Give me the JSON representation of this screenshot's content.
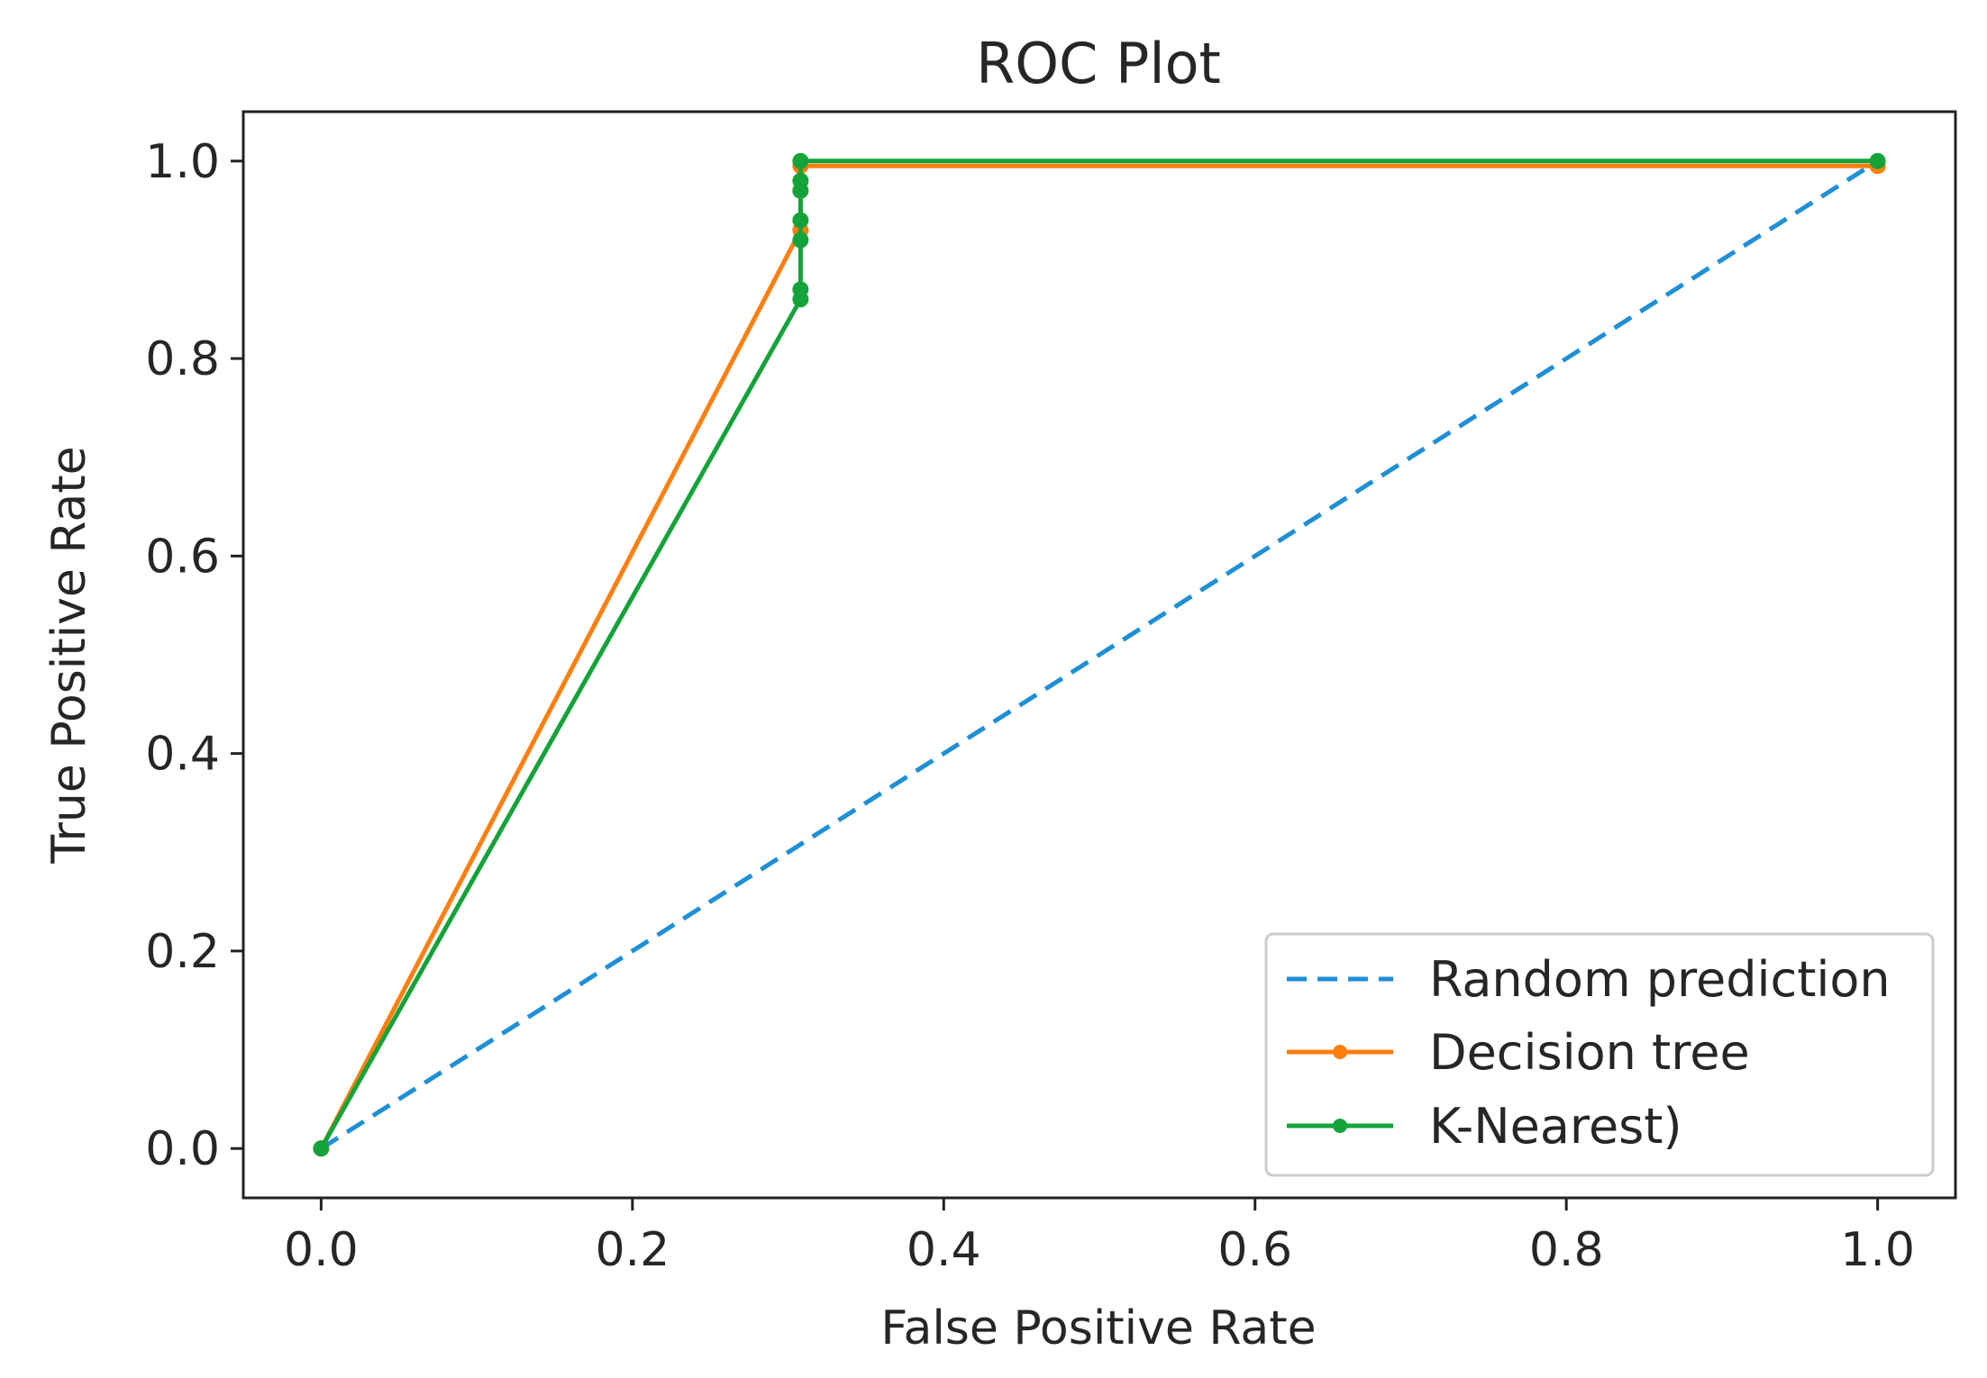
{
  "chart_data": {
    "type": "line",
    "title": "ROC Plot",
    "xlabel": "False Positive Rate",
    "ylabel": "True Positive Rate",
    "xlim": [
      -0.05,
      1.05
    ],
    "ylim": [
      -0.05,
      1.05
    ],
    "xticks": [
      0.0,
      0.2,
      0.4,
      0.6,
      0.8,
      1.0
    ],
    "yticks": [
      0.0,
      0.2,
      0.4,
      0.6,
      0.8,
      1.0
    ],
    "xtick_labels": [
      "0.0",
      "0.2",
      "0.4",
      "0.6",
      "0.8",
      "1.0"
    ],
    "ytick_labels": [
      "0.0",
      "0.2",
      "0.4",
      "0.6",
      "0.8",
      "1.0"
    ],
    "grid": false,
    "legend_position": "lower-right",
    "series": [
      {
        "name": "Random prediction",
        "color": "#1f8fd6",
        "style": "dashed",
        "marker": "none",
        "x": [
          0.0,
          1.0
        ],
        "y": [
          0.0,
          1.0
        ]
      },
      {
        "name": "Decision tree",
        "color": "#ff7f0e",
        "style": "solid",
        "marker": "dot",
        "x": [
          0.0,
          0.308,
          0.308,
          0.308,
          1.0
        ],
        "y": [
          0.0,
          0.93,
          0.97,
          0.995,
          0.995
        ]
      },
      {
        "name": "K-Nearest)",
        "color": "#14a33a",
        "style": "solid",
        "marker": "dot",
        "x": [
          0.0,
          0.308,
          0.308,
          0.308,
          0.308,
          0.308,
          0.308,
          0.308,
          1.0
        ],
        "y": [
          0.0,
          0.86,
          0.87,
          0.92,
          0.94,
          0.97,
          0.98,
          1.0,
          1.0
        ]
      }
    ]
  }
}
